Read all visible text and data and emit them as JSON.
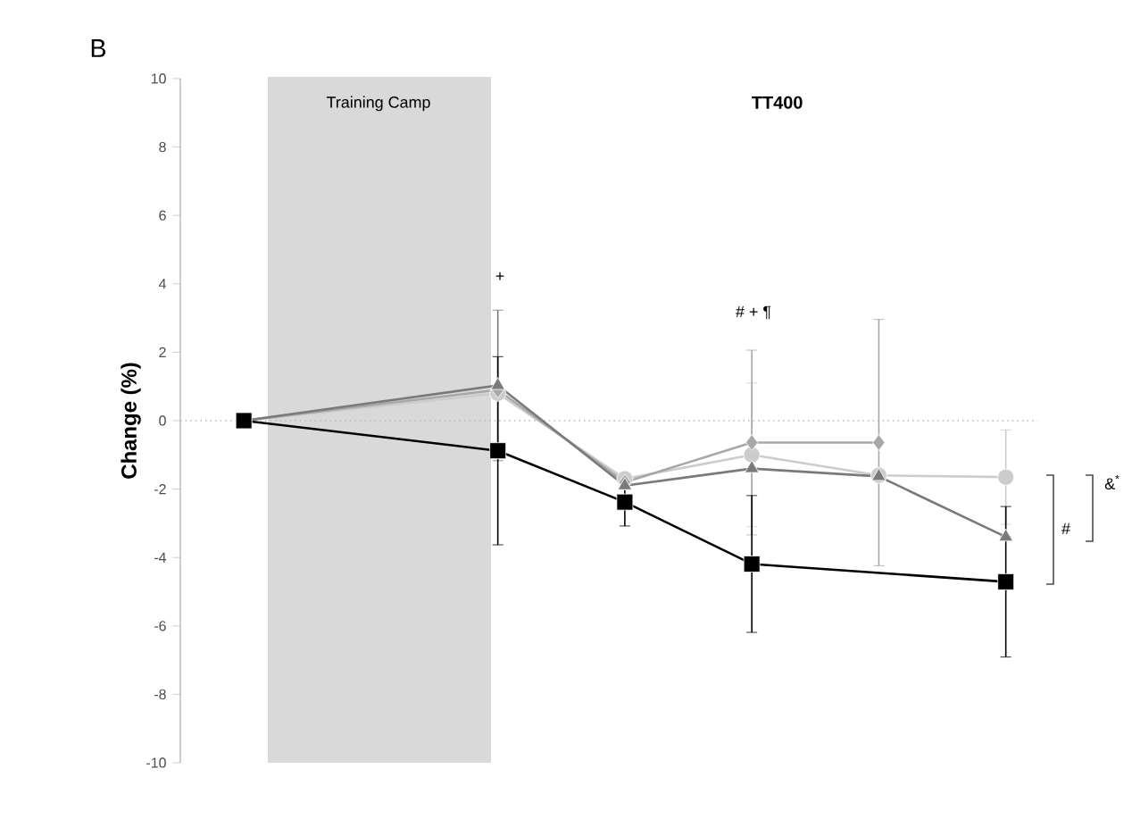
{
  "chart_data": {
    "type": "line",
    "title": "TT400",
    "ylabel": "Change (%)",
    "categories": [
      null,
      null,
      null,
      null,
      null,
      null,
      null
    ],
    "series": [
      {
        "color": "#cccccc",
        "marker": "circle",
        "values": [
          0,
          null,
          0.8,
          -1.7,
          -1.0,
          -1.6,
          -1.65
        ],
        "errors": [
          null,
          null,
          null,
          null,
          2.1,
          null,
          1.38
        ]
      },
      {
        "color": "#a8a8a8",
        "marker": "diamond",
        "values": [
          0,
          null,
          0.9,
          -1.8,
          -0.64,
          -0.64,
          null
        ],
        "errors": [
          null,
          null,
          null,
          null,
          2.7,
          3.6,
          null
        ]
      },
      {
        "color": "#7a7a7a",
        "marker": "triangle",
        "values": [
          0,
          null,
          1.03,
          -1.9,
          -1.4,
          -1.63,
          -3.4
        ],
        "errors": [
          null,
          null,
          2.2,
          null,
          null,
          null,
          null
        ]
      },
      {
        "color": "#000000",
        "marker": "square",
        "values": [
          0,
          null,
          -0.88,
          -2.38,
          -4.19,
          null,
          -4.71
        ],
        "errors": [
          null,
          null,
          2.75,
          0.7,
          2.0,
          null,
          2.2
        ]
      }
    ],
    "ylim": [
      -10,
      10
    ],
    "yticks": [
      -10,
      -8,
      -6,
      -4,
      -2,
      0,
      2,
      4,
      6,
      8,
      10
    ],
    "ref_lines": [
      {
        "axis": "y",
        "value": 0,
        "line_style": "dotted",
        "color": "#bbbbbb"
      }
    ],
    "annotations": [
      "B",
      "+",
      "# + ¶",
      "#",
      "&$^{*}$",
      "Training Camp"
    ],
    "grid": false
  }
}
